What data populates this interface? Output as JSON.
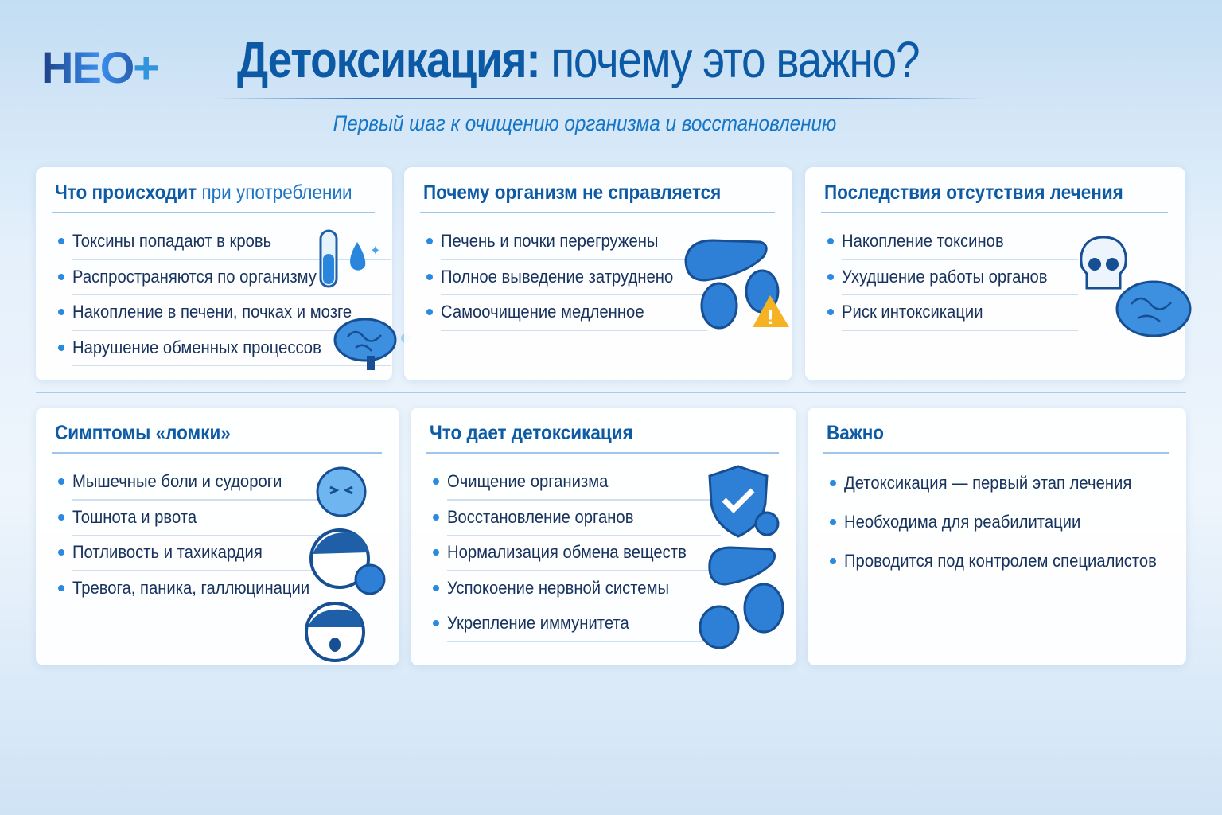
{
  "logo": {
    "text": "НЕО",
    "plus": "+"
  },
  "header": {
    "title_bold": "Детоксикация:",
    "title_regular": " почему это важно?",
    "subtitle": "Первый шаг к очищению организма и восстановлению"
  },
  "colors": {
    "accent": "#0d5aa5",
    "bullet": "#2a8ae0",
    "icon": "#1f78d1"
  },
  "cards": [
    {
      "title_bold": "Что происходит",
      "title_light": " при употреблении",
      "items": [
        "Токсины попадают в кровь",
        "Распространяются по организму",
        "Накопление в печени, почках и мозге",
        "Нарушение обменных процессов"
      ],
      "icons": [
        "test-tube-icon",
        "drop-icon",
        "brain-icon"
      ]
    },
    {
      "title_bold": "Почему организм не справляется",
      "items": [
        "Печень и почки перегружены",
        "Полное выведение затруднено",
        "Самоочищение медленное"
      ],
      "icons": [
        "liver-icon",
        "kidneys-icon",
        "warning-icon"
      ]
    },
    {
      "title_bold": "Последствия отсутствия лечения",
      "items": [
        "Накопление токсинов",
        "Ухудшение работы органов",
        "Риск интоксикации"
      ],
      "icons": [
        "skull-icon",
        "brain-icon"
      ]
    },
    {
      "title_bold": "Симптомы «ломки»",
      "items": [
        "Мышечные боли и судороги",
        "Тошнота и рвота",
        "Потливость и тахикардия",
        "Тревога, паника, галлюцинации"
      ],
      "icons": [
        "nauseous-face-icon",
        "sweating-face-icon",
        "scared-face-icon"
      ]
    },
    {
      "title_bold": "Что дает детоксикация",
      "items": [
        "Очищение организма",
        "Восстановление органов",
        "Нормализация обмена веществ",
        "Успокоение нервной системы",
        "Укрепление иммунитета"
      ],
      "icons": [
        "shield-check-icon",
        "liver-icon",
        "kidneys-icon"
      ]
    },
    {
      "title_bold": "Важно",
      "items": [
        "Детоксикация — первый этап лечения",
        "Необходима для реабилитации",
        "Проводится под контролем специалистов"
      ],
      "icons": []
    }
  ]
}
